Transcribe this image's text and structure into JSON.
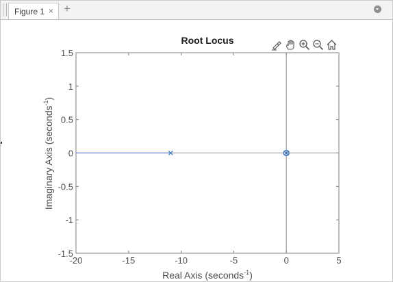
{
  "window": {
    "tab_label": "Figure 1",
    "tab_close_glyph": "×",
    "tab_add_glyph": "+",
    "tab_menu_icon": "chevron-down-circle-icon"
  },
  "toolbar": {
    "icons": [
      "brush-edit-icon",
      "pan-hand-icon",
      "zoom-in-icon",
      "zoom-out-icon",
      "home-icon"
    ]
  },
  "chart_data": {
    "type": "scatter",
    "title": "Root Locus",
    "xlabel": "Real  Axis  (seconds",
    "ylabel": "Imaginary  Axis  (seconds",
    "label_exponent": "-1",
    "label_close": ")",
    "xlim": [
      -20,
      5
    ],
    "ylim": [
      -1.5,
      1.5
    ],
    "xticks": [
      -20,
      -15,
      -10,
      -5,
      0,
      5
    ],
    "yticks": [
      -1.5,
      -1,
      -0.5,
      0,
      0.5,
      1,
      1.5
    ],
    "grid": false,
    "locus": {
      "x": [
        -20,
        -11
      ],
      "y": [
        0,
        0
      ],
      "color": "#2f4fc2"
    },
    "poles": [
      {
        "x": -11,
        "y": 0
      },
      {
        "x": 0,
        "y": 0
      }
    ],
    "zeros": [
      {
        "x": 0,
        "y": 0
      }
    ],
    "marker_color": "#2e6fc0",
    "axis_color": "#8c8c8c"
  }
}
